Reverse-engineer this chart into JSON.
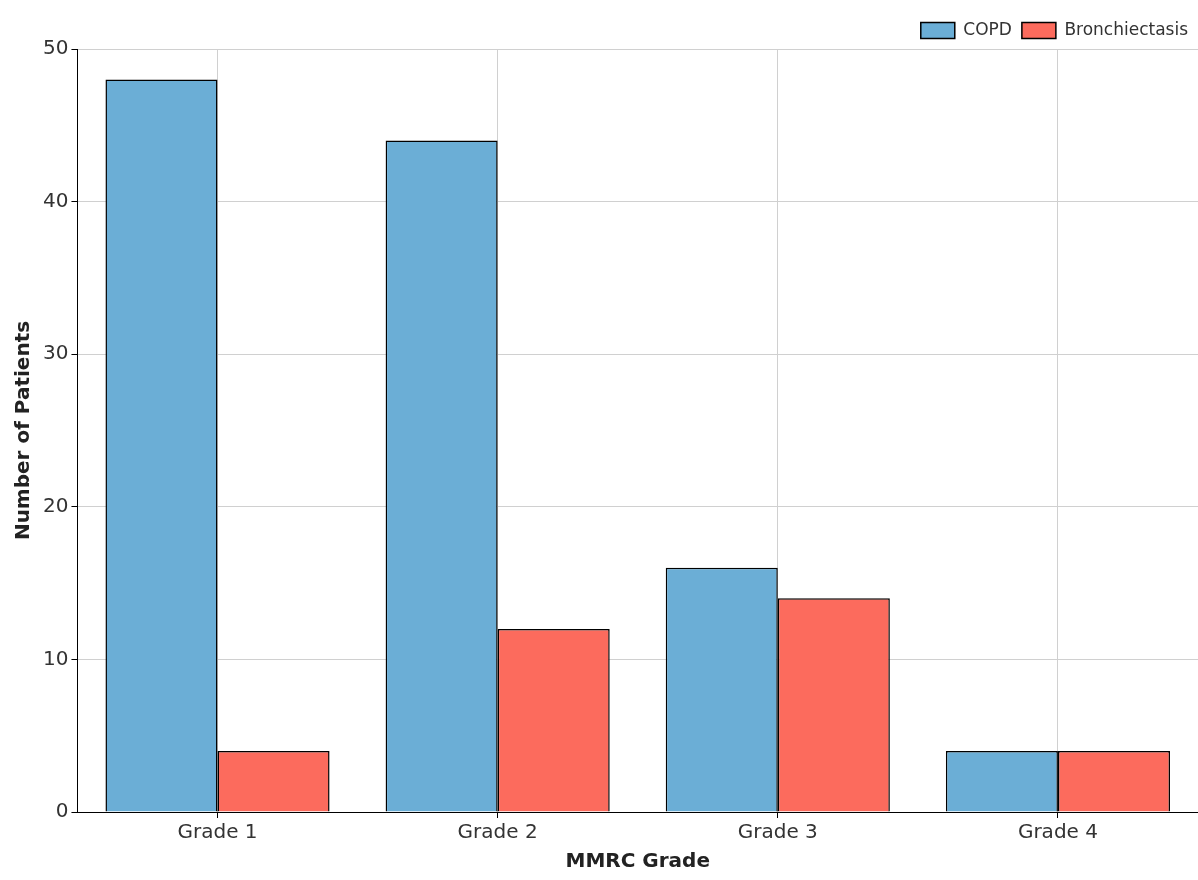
{
  "chart_data": {
    "type": "bar",
    "xlabel": "MMRC Grade",
    "ylabel": "Number of Patients",
    "categories": [
      "Grade 1",
      "Grade 2",
      "Grade 3",
      "Grade 4"
    ],
    "series": [
      {
        "name": "COPD",
        "color": "#6baed6",
        "values": [
          48,
          44,
          16,
          4
        ]
      },
      {
        "name": "Bronchiectasis",
        "color": "#fc6b5d",
        "values": [
          4,
          12,
          14,
          4
        ]
      }
    ],
    "ylim": [
      0,
      50
    ],
    "yticks": [
      0,
      10,
      20,
      30,
      40,
      50
    ],
    "grid": true,
    "legend": "top right"
  }
}
